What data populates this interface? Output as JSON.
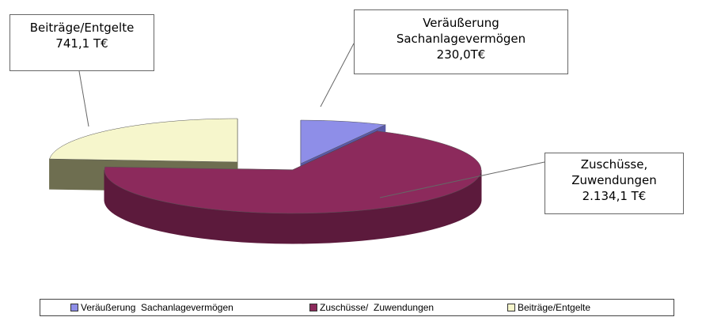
{
  "chart_data": {
    "type": "pie3d",
    "categories": [
      "Veräußerung\nSachanlagevermögen",
      "Zuschüsse,\nZuwendungen",
      "Beiträge/Entgelte"
    ],
    "values": [
      230.0,
      2134.1,
      741.1
    ],
    "value_labels": [
      "230,0T€",
      "2.134,1 T€",
      "741,1 T€"
    ],
    "legend": [
      "Veräußerung  Sachanlagevermögen",
      "Zuschüsse/  Zuwendungen",
      "Beiträge/Entgelte"
    ],
    "colors": [
      "#8e8ee8",
      "#8c2a5c",
      "#f6f6cc"
    ],
    "side_colors": [
      "#5a5aa8",
      "#5c1a3c",
      "#6e6e50"
    ]
  }
}
